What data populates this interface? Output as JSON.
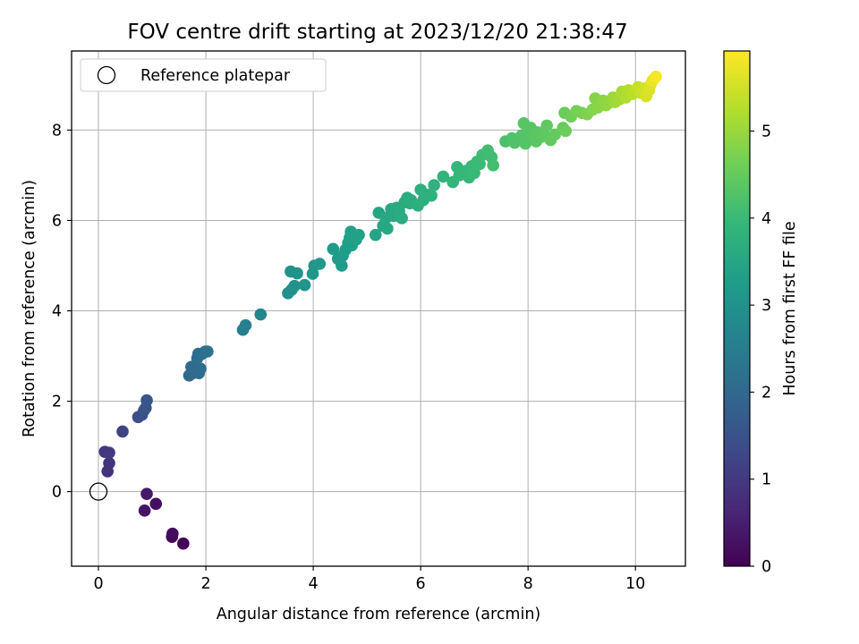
{
  "chart_data": {
    "type": "scatter",
    "title": "FOV centre drift starting at 2023/12/20 21:38:47",
    "xlabel": "Angular distance from reference (arcmin)",
    "ylabel": "Rotation from reference (arcmin)",
    "xlim": [
      -0.5,
      10.93
    ],
    "ylim": [
      -1.65,
      9.75
    ],
    "xticks": [
      0,
      2,
      4,
      6,
      8,
      10
    ],
    "yticks": [
      0,
      2,
      4,
      6,
      8
    ],
    "grid": true,
    "legend": {
      "placement": "top-left",
      "entries": [
        "Reference platepar"
      ]
    },
    "reference_point": {
      "x": 0,
      "y": 0,
      "label": "Reference platepar"
    },
    "colorbar": {
      "label": "Hours from first FF file",
      "colormap": "viridis",
      "range": [
        0,
        5.92
      ],
      "ticks": [
        0,
        1,
        2,
        3,
        4,
        5
      ],
      "stops": [
        "#440154",
        "#482878",
        "#3e4989",
        "#31688e",
        "#26828e",
        "#1f9e89",
        "#35b779",
        "#6ece58",
        "#b5de2b",
        "#fde725"
      ]
    },
    "series": [
      {
        "columns": [
          "x",
          "y",
          "hours"
        ],
        "points": [
          [
            1.58,
            -1.15,
            0.05
          ],
          [
            1.37,
            -1.0,
            0.12
          ],
          [
            1.38,
            -0.93,
            0.18
          ],
          [
            1.07,
            -0.27,
            0.25
          ],
          [
            0.86,
            -0.42,
            0.32
          ],
          [
            0.9,
            -0.05,
            0.4
          ],
          [
            0.17,
            0.45,
            0.85
          ],
          [
            0.2,
            0.63,
            0.9
          ],
          [
            0.12,
            0.88,
            0.95
          ],
          [
            0.2,
            0.86,
            1.0
          ],
          [
            0.45,
            1.33,
            1.2
          ],
          [
            0.74,
            1.65,
            1.4
          ],
          [
            0.81,
            1.7,
            1.45
          ],
          [
            0.85,
            1.8,
            1.5
          ],
          [
            0.88,
            1.85,
            1.55
          ],
          [
            0.9,
            2.02,
            1.6
          ],
          [
            1.69,
            2.57,
            2.0
          ],
          [
            1.76,
            2.62,
            2.02
          ],
          [
            1.73,
            2.76,
            2.05
          ],
          [
            1.8,
            2.72,
            2.06
          ],
          [
            1.87,
            2.62,
            2.08
          ],
          [
            1.9,
            2.72,
            2.1
          ],
          [
            1.84,
            2.95,
            2.12
          ],
          [
            1.86,
            3.05,
            2.14
          ],
          [
            1.93,
            3.05,
            2.16
          ],
          [
            1.99,
            3.1,
            2.18
          ],
          [
            2.03,
            3.1,
            2.2
          ],
          [
            2.69,
            3.58,
            2.55
          ],
          [
            2.74,
            3.68,
            2.58
          ],
          [
            3.02,
            3.92,
            2.7
          ],
          [
            3.53,
            4.39,
            2.95
          ],
          [
            3.6,
            4.47,
            2.98
          ],
          [
            3.65,
            4.55,
            3.0
          ],
          [
            3.58,
            4.87,
            3.02
          ],
          [
            3.7,
            4.83,
            3.04
          ],
          [
            3.84,
            4.57,
            3.06
          ],
          [
            3.99,
            4.82,
            3.1
          ],
          [
            4.02,
            5.0,
            3.12
          ],
          [
            4.12,
            5.04,
            3.14
          ],
          [
            4.37,
            5.37,
            3.2
          ],
          [
            4.46,
            5.15,
            3.22
          ],
          [
            4.53,
            5.0,
            3.24
          ],
          [
            4.55,
            5.22,
            3.26
          ],
          [
            4.6,
            5.35,
            3.28
          ],
          [
            4.65,
            5.5,
            3.3
          ],
          [
            4.72,
            5.45,
            3.32
          ],
          [
            4.68,
            5.62,
            3.34
          ],
          [
            4.7,
            5.75,
            3.35
          ],
          [
            4.8,
            5.58,
            3.36
          ],
          [
            4.85,
            5.68,
            3.38
          ],
          [
            5.16,
            5.68,
            3.45
          ],
          [
            5.22,
            6.17,
            3.48
          ],
          [
            5.3,
            5.88,
            3.5
          ],
          [
            5.35,
            6.05,
            3.52
          ],
          [
            5.38,
            5.82,
            3.54
          ],
          [
            5.45,
            6.25,
            3.56
          ],
          [
            5.5,
            6.1,
            3.58
          ],
          [
            5.55,
            6.28,
            3.6
          ],
          [
            5.6,
            6.2,
            3.62
          ],
          [
            5.65,
            6.05,
            3.63
          ],
          [
            5.7,
            6.4,
            3.65
          ],
          [
            5.75,
            6.5,
            3.67
          ],
          [
            5.8,
            6.38,
            3.68
          ],
          [
            5.82,
            6.45,
            3.69
          ],
          [
            5.95,
            6.33,
            3.72
          ],
          [
            6.0,
            6.68,
            3.74
          ],
          [
            6.05,
            6.45,
            3.75
          ],
          [
            6.12,
            6.57,
            3.76
          ],
          [
            6.2,
            6.55,
            3.78
          ],
          [
            6.25,
            6.78,
            3.8
          ],
          [
            6.42,
            6.97,
            3.85
          ],
          [
            6.6,
            6.85,
            3.9
          ],
          [
            6.68,
            7.18,
            3.92
          ],
          [
            6.72,
            7.0,
            3.94
          ],
          [
            6.78,
            7.05,
            3.95
          ],
          [
            6.85,
            7.1,
            3.96
          ],
          [
            6.9,
            6.95,
            3.97
          ],
          [
            6.95,
            7.2,
            3.98
          ],
          [
            7.0,
            7.05,
            4.0
          ],
          [
            7.05,
            7.3,
            4.02
          ],
          [
            7.1,
            7.25,
            4.03
          ],
          [
            7.15,
            7.45,
            4.05
          ],
          [
            7.25,
            7.55,
            4.08
          ],
          [
            7.32,
            7.4,
            4.1
          ],
          [
            7.35,
            7.22,
            4.12
          ],
          [
            7.58,
            7.75,
            4.2
          ],
          [
            7.7,
            7.82,
            4.25
          ],
          [
            7.75,
            7.72,
            4.27
          ],
          [
            7.88,
            7.88,
            4.3
          ],
          [
            7.95,
            7.7,
            4.32
          ],
          [
            8.0,
            7.95,
            4.33
          ],
          [
            7.92,
            8.15,
            4.34
          ],
          [
            8.05,
            8.05,
            4.35
          ],
          [
            8.1,
            7.85,
            4.36
          ],
          [
            8.15,
            7.75,
            4.37
          ],
          [
            8.18,
            7.95,
            4.38
          ],
          [
            8.25,
            7.85,
            4.4
          ],
          [
            8.3,
            7.9,
            4.42
          ],
          [
            8.35,
            8.1,
            4.44
          ],
          [
            8.42,
            7.78,
            4.46
          ],
          [
            8.5,
            7.9,
            4.48
          ],
          [
            8.65,
            8.05,
            4.55
          ],
          [
            8.68,
            8.38,
            4.56
          ],
          [
            8.7,
            7.98,
            4.57
          ],
          [
            8.8,
            8.3,
            4.6
          ],
          [
            8.9,
            8.42,
            4.65
          ],
          [
            9.0,
            8.38,
            4.7
          ],
          [
            9.1,
            8.35,
            4.75
          ],
          [
            9.2,
            8.45,
            4.8
          ],
          [
            9.25,
            8.7,
            4.83
          ],
          [
            9.3,
            8.5,
            4.85
          ],
          [
            9.4,
            8.65,
            4.9
          ],
          [
            9.45,
            8.55,
            4.93
          ],
          [
            9.5,
            8.6,
            4.95
          ],
          [
            9.58,
            8.72,
            5.0
          ],
          [
            9.62,
            8.62,
            5.05
          ],
          [
            9.7,
            8.68,
            5.1
          ],
          [
            9.75,
            8.85,
            5.15
          ],
          [
            9.82,
            8.72,
            5.2
          ],
          [
            9.87,
            8.88,
            5.25
          ],
          [
            9.95,
            8.8,
            5.3
          ],
          [
            10.02,
            8.9,
            5.35
          ],
          [
            10.05,
            8.95,
            5.4
          ],
          [
            10.1,
            8.82,
            5.45
          ],
          [
            10.15,
            8.92,
            5.5
          ],
          [
            10.2,
            8.75,
            5.55
          ],
          [
            10.25,
            8.88,
            5.6
          ],
          [
            10.28,
            9.0,
            5.65
          ],
          [
            10.32,
            9.1,
            5.75
          ],
          [
            10.38,
            9.18,
            5.85
          ]
        ]
      }
    ]
  }
}
